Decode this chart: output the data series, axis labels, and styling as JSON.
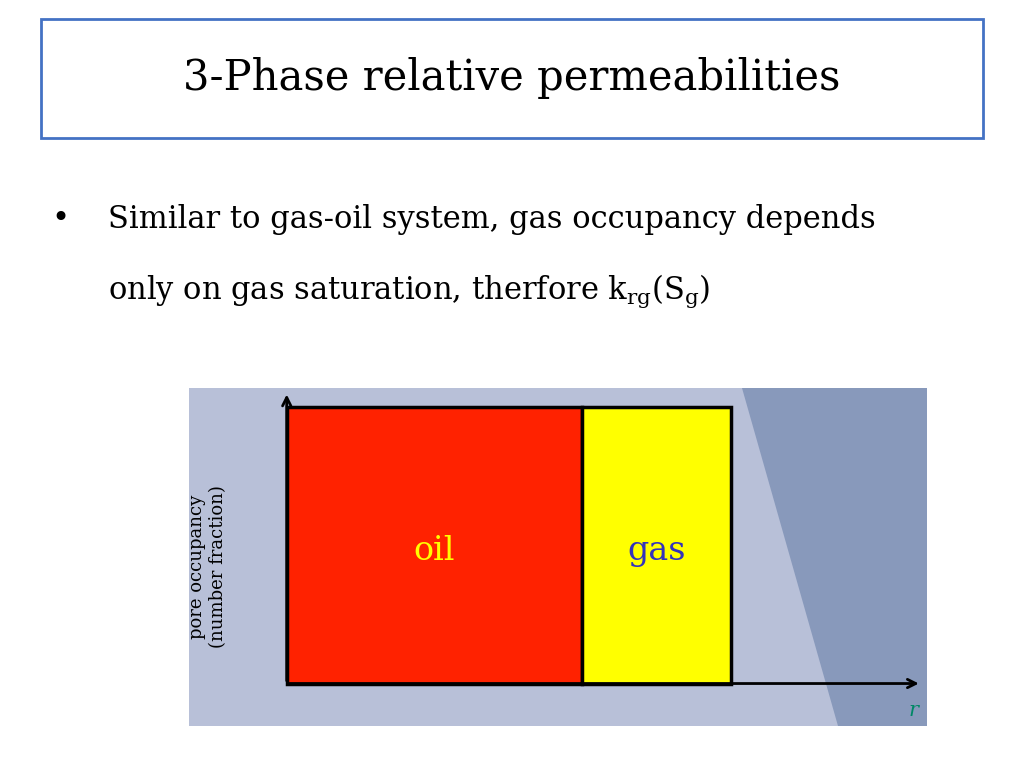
{
  "title": "3-Phase relative permeabilities",
  "title_fontsize": 30,
  "title_box_color": "#4472c4",
  "bullet_line1": "Similar to gas-oil system, gas occupancy depends",
  "bullet_line2": "only on gas saturation, therfore $\\mathregular{k_{rg}(S_g)}$",
  "bullet_fontsize": 22,
  "bg_color": "#ffffff",
  "diagram_bg": "#b8c0d8",
  "diagram_bg_right": "#8899bb",
  "oil_color": "#ff2200",
  "gas_color": "#ffff00",
  "oil_label": "oil",
  "gas_label": "gas",
  "oil_label_color": "#ffff00",
  "gas_label_color": "#3333bb",
  "xlabel_r": "r",
  "label_fontsize": 13
}
